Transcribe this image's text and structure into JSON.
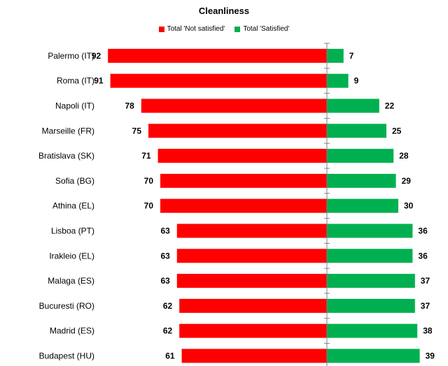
{
  "chart_data": {
    "type": "bar",
    "orientation": "horizontal-diverging",
    "title": "Cleanliness",
    "categories": [
      "Palermo (IT)",
      "Roma (IT)",
      "Napoli (IT)",
      "Marseille (FR)",
      "Bratislava (SK)",
      "Sofia (BG)",
      "Athina (EL)",
      "Lisboa (PT)",
      "Irakleio (EL)",
      "Malaga (ES)",
      "Bucuresti (RO)",
      "Madrid (ES)",
      "Budapest (HU)"
    ],
    "series": [
      {
        "name": "Total 'Not satisfied'",
        "color": "#ff0000",
        "direction": "left",
        "values": [
          92,
          91,
          78,
          75,
          71,
          70,
          70,
          63,
          63,
          63,
          62,
          62,
          61
        ]
      },
      {
        "name": "Total 'Satisfied'",
        "color": "#00b050",
        "direction": "right",
        "values": [
          7,
          9,
          22,
          25,
          28,
          29,
          30,
          36,
          36,
          37,
          37,
          38,
          39
        ]
      }
    ],
    "legend_position": "top-center",
    "grid": false
  }
}
